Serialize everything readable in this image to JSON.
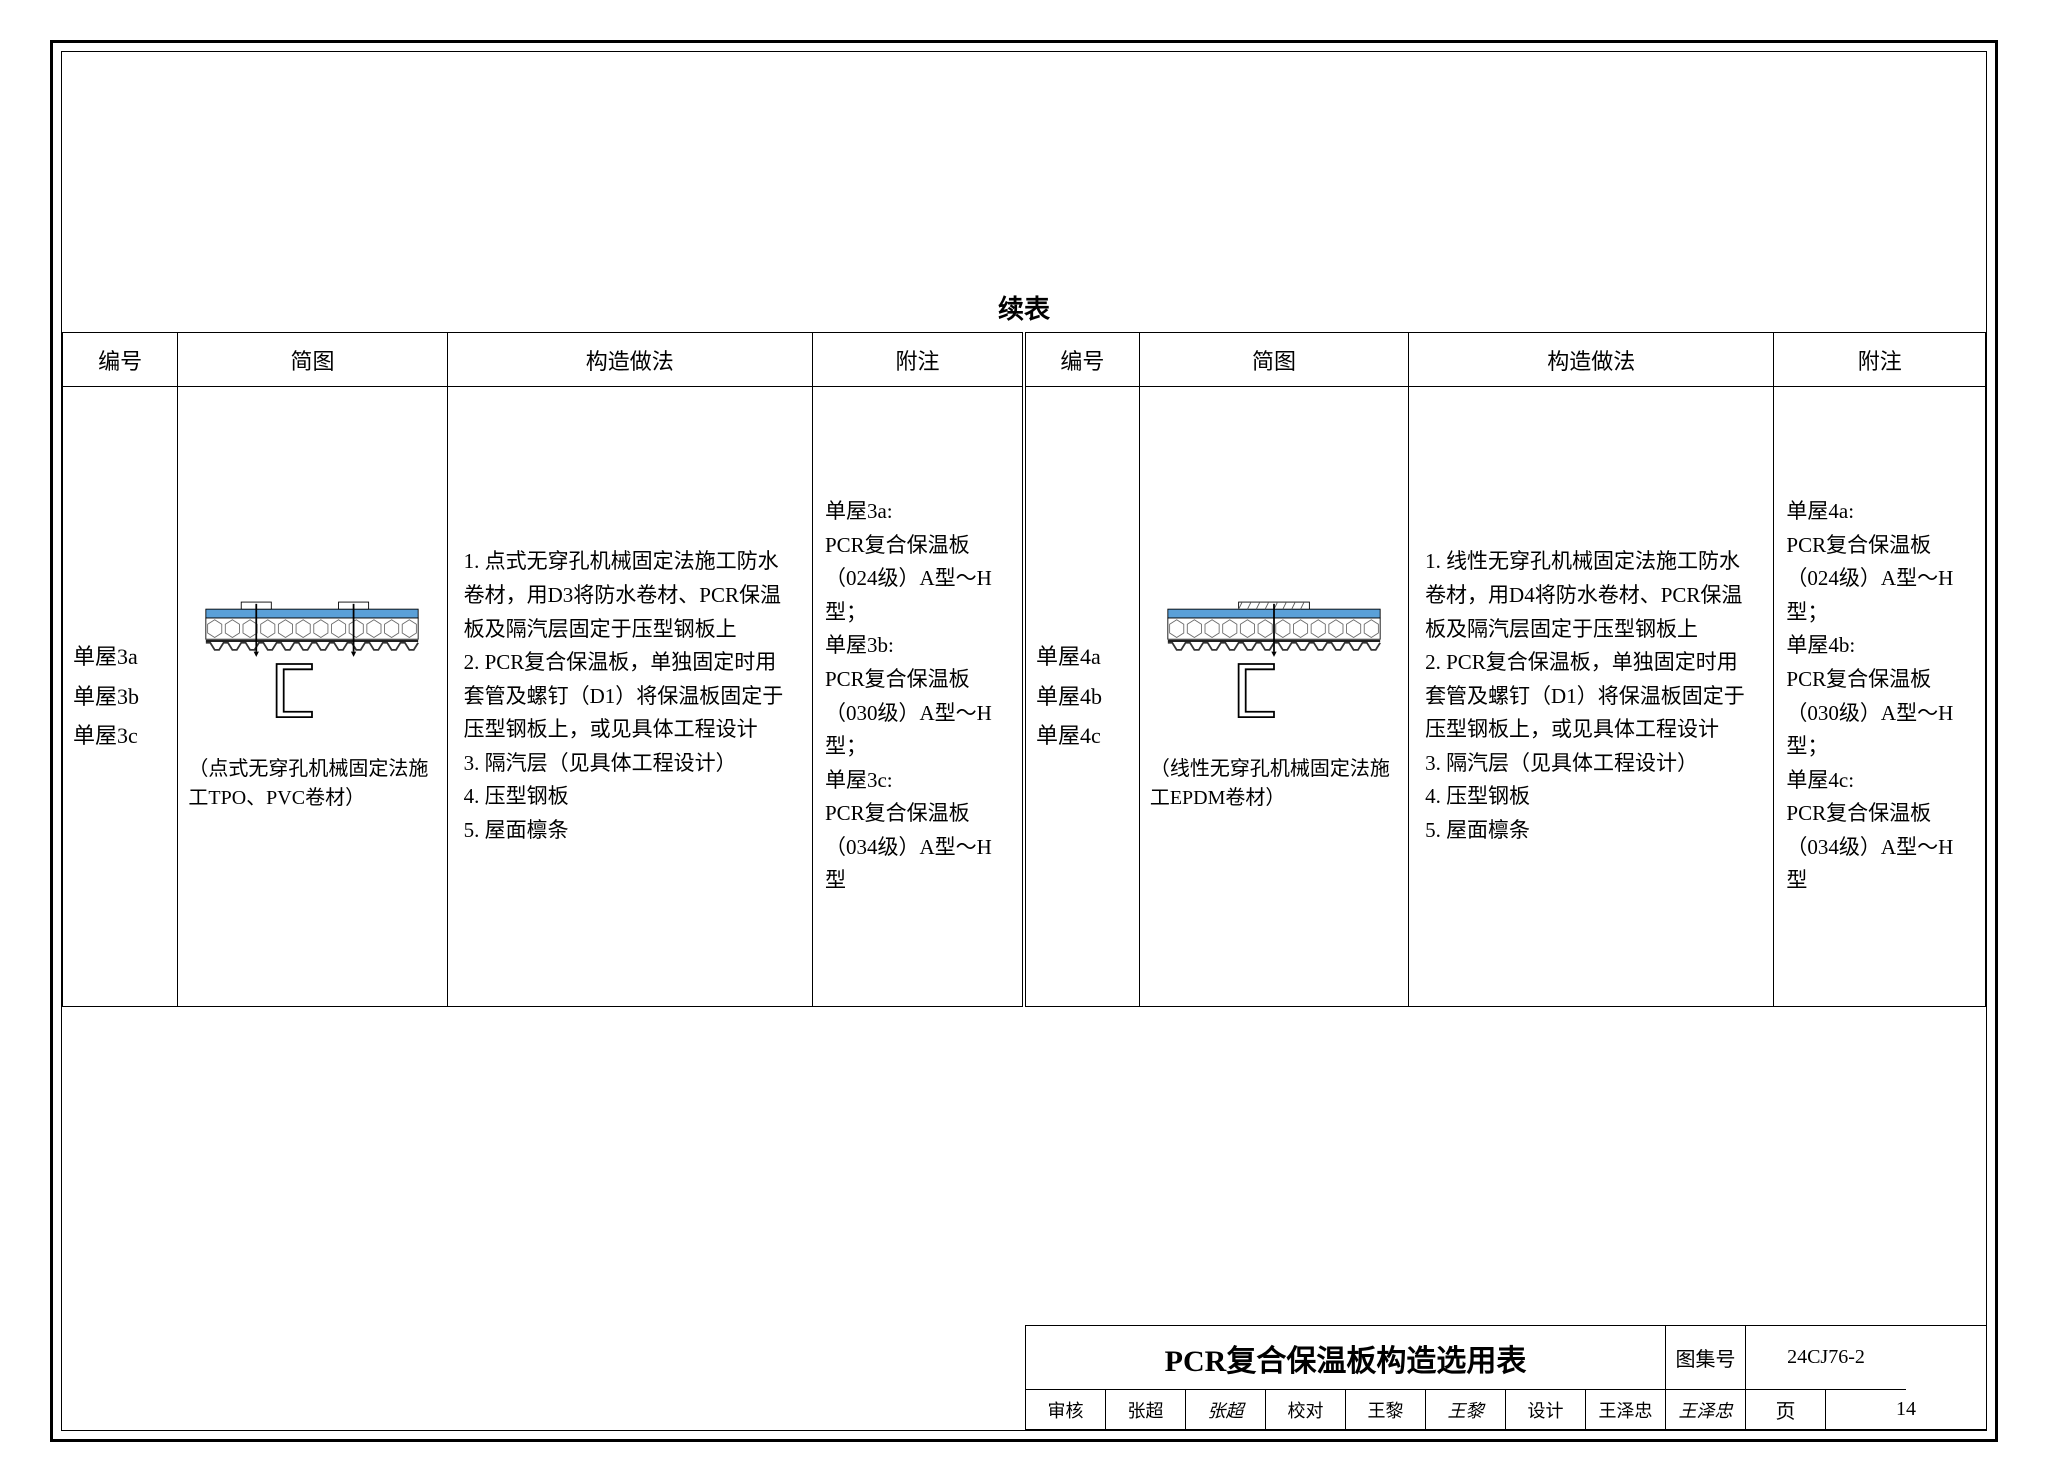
{
  "continued_label": "续表",
  "headers": {
    "id": "编号",
    "diagram": "简图",
    "construction": "构造做法",
    "note": "附注"
  },
  "left": {
    "ids": [
      "单屋3a",
      "单屋3b",
      "单屋3c"
    ],
    "diagram_caption": "（点式无穿孔机械固定法施工TPO、PVC卷材）",
    "construction": [
      "1. 点式无穿孔机械固定法施工防水卷材，用D3将防水卷材、PCR保温板及隔汽层固定于压型钢板上",
      "2. PCR复合保温板，单独固定时用套管及螺钉（D1）将保温板固定于压型钢板上，或见具体工程设计",
      "3. 隔汽层（见具体工程设计）",
      "4. 压型钢板",
      "5. 屋面檩条"
    ],
    "note": "单屋3a:\nPCR复合保温板 （024级）A型～H型；\n单屋3b:\nPCR复合保温板 （030级）A型～H型；\n单屋3c:\nPCR复合保温板 （034级）A型～H型"
  },
  "right": {
    "ids": [
      "单屋4a",
      "单屋4b",
      "单屋4c"
    ],
    "diagram_caption": "（线性无穿孔机械固定法施工EPDM卷材）",
    "construction": [
      "1. 线性无穿孔机械固定法施工防水卷材，用D4将防水卷材、PCR保温板及隔汽层固定于压型钢板上",
      "2. PCR复合保温板，单独固定时用套管及螺钉（D1）将保温板固定于压型钢板上，或见具体工程设计",
      "3. 隔汽层（见具体工程设计）",
      "4. 压型钢板",
      "5. 屋面檩条"
    ],
    "note": "单屋4a:\nPCR复合保温板 （024级）A型～H型；\n单屋4b:\nPCR复合保温板 （030级）A型～H型；\n单屋4c:\nPCR复合保温板 （034级）A型～H型"
  },
  "diagram_colors": {
    "membrane": "#5aa0d8",
    "hex_fill": "#ffffff",
    "hex_stroke": "#6a6a6a",
    "steel": "#333333",
    "hatch": "#555555"
  },
  "titleblock": {
    "title": "PCR复合保温板构造选用表",
    "atlas_label": "图集号",
    "atlas_value": "24CJ76-2",
    "page_label": "页",
    "page_value": "14",
    "review_label": "审核",
    "review_name": "张超",
    "review_sign": "张超",
    "check_label": "校对",
    "check_name": "王黎",
    "check_sign": "王黎",
    "design_label": "设计",
    "design_name": "王泽忠",
    "design_sign": "王泽忠"
  }
}
